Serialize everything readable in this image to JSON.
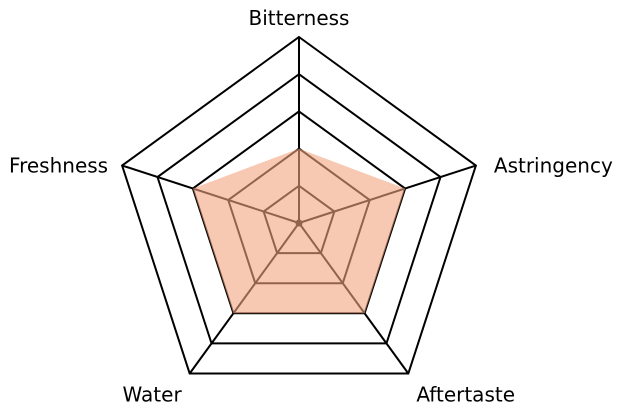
{
  "chart_data": {
    "type": "radar",
    "categories": [
      "Bitterness",
      "Astringency",
      "Aftertaste",
      "Water",
      "Freshness"
    ],
    "values": [
      2,
      3,
      3,
      3,
      3
    ],
    "rlim": [
      0,
      5
    ],
    "rings": 5,
    "grid": true,
    "colors": {
      "fill": "#f4a57e",
      "grid": "#000000"
    }
  }
}
